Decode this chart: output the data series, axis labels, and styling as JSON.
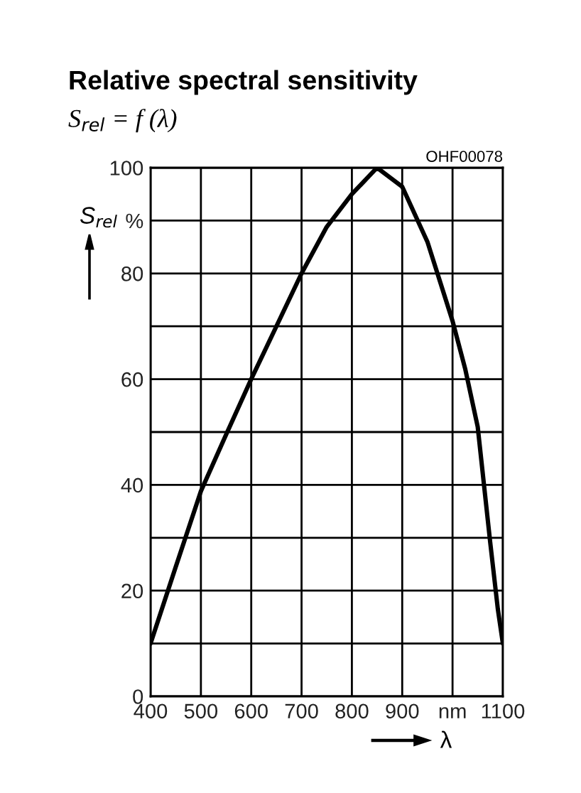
{
  "chart_data": {
    "type": "line",
    "title": "Relative spectral sensitivity",
    "subtitle": "S$_{rel}$ = f (λ)",
    "xlabel": "λ",
    "ylabel": "S$_{rel}$",
    "annotations": [
      "OHF00078"
    ],
    "x": [
      400,
      450,
      500,
      550,
      600,
      650,
      700,
      750,
      800,
      850,
      900,
      950,
      1000,
      1025,
      1050,
      1075,
      1090,
      1100
    ],
    "series": [
      {
        "color": "#000000",
        "values": [
          10,
          24.5,
          38.8,
          49.5,
          60,
          70,
          80,
          88.8,
          95,
          100,
          96.4,
          86,
          71,
          62,
          51,
          29,
          16.5,
          10
        ]
      }
    ],
    "xlim": [
      400,
      1100
    ],
    "ylim": [
      0,
      100
    ],
    "xticks": [
      400,
      500,
      600,
      700,
      800,
      900,
      {
        "value": 1000,
        "label": "nm"
      },
      1100
    ],
    "yticks": [
      0,
      {
        "value": 10,
        "label": null
      },
      20,
      {
        "value": 30,
        "label": null
      },
      40,
      {
        "value": 50,
        "label": null
      },
      60,
      {
        "value": 70,
        "label": null
      },
      80,
      {
        "value": 90,
        "label": "%"
      },
      100
    ],
    "grid": true,
    "marker": "none",
    "line_style": "solid"
  }
}
